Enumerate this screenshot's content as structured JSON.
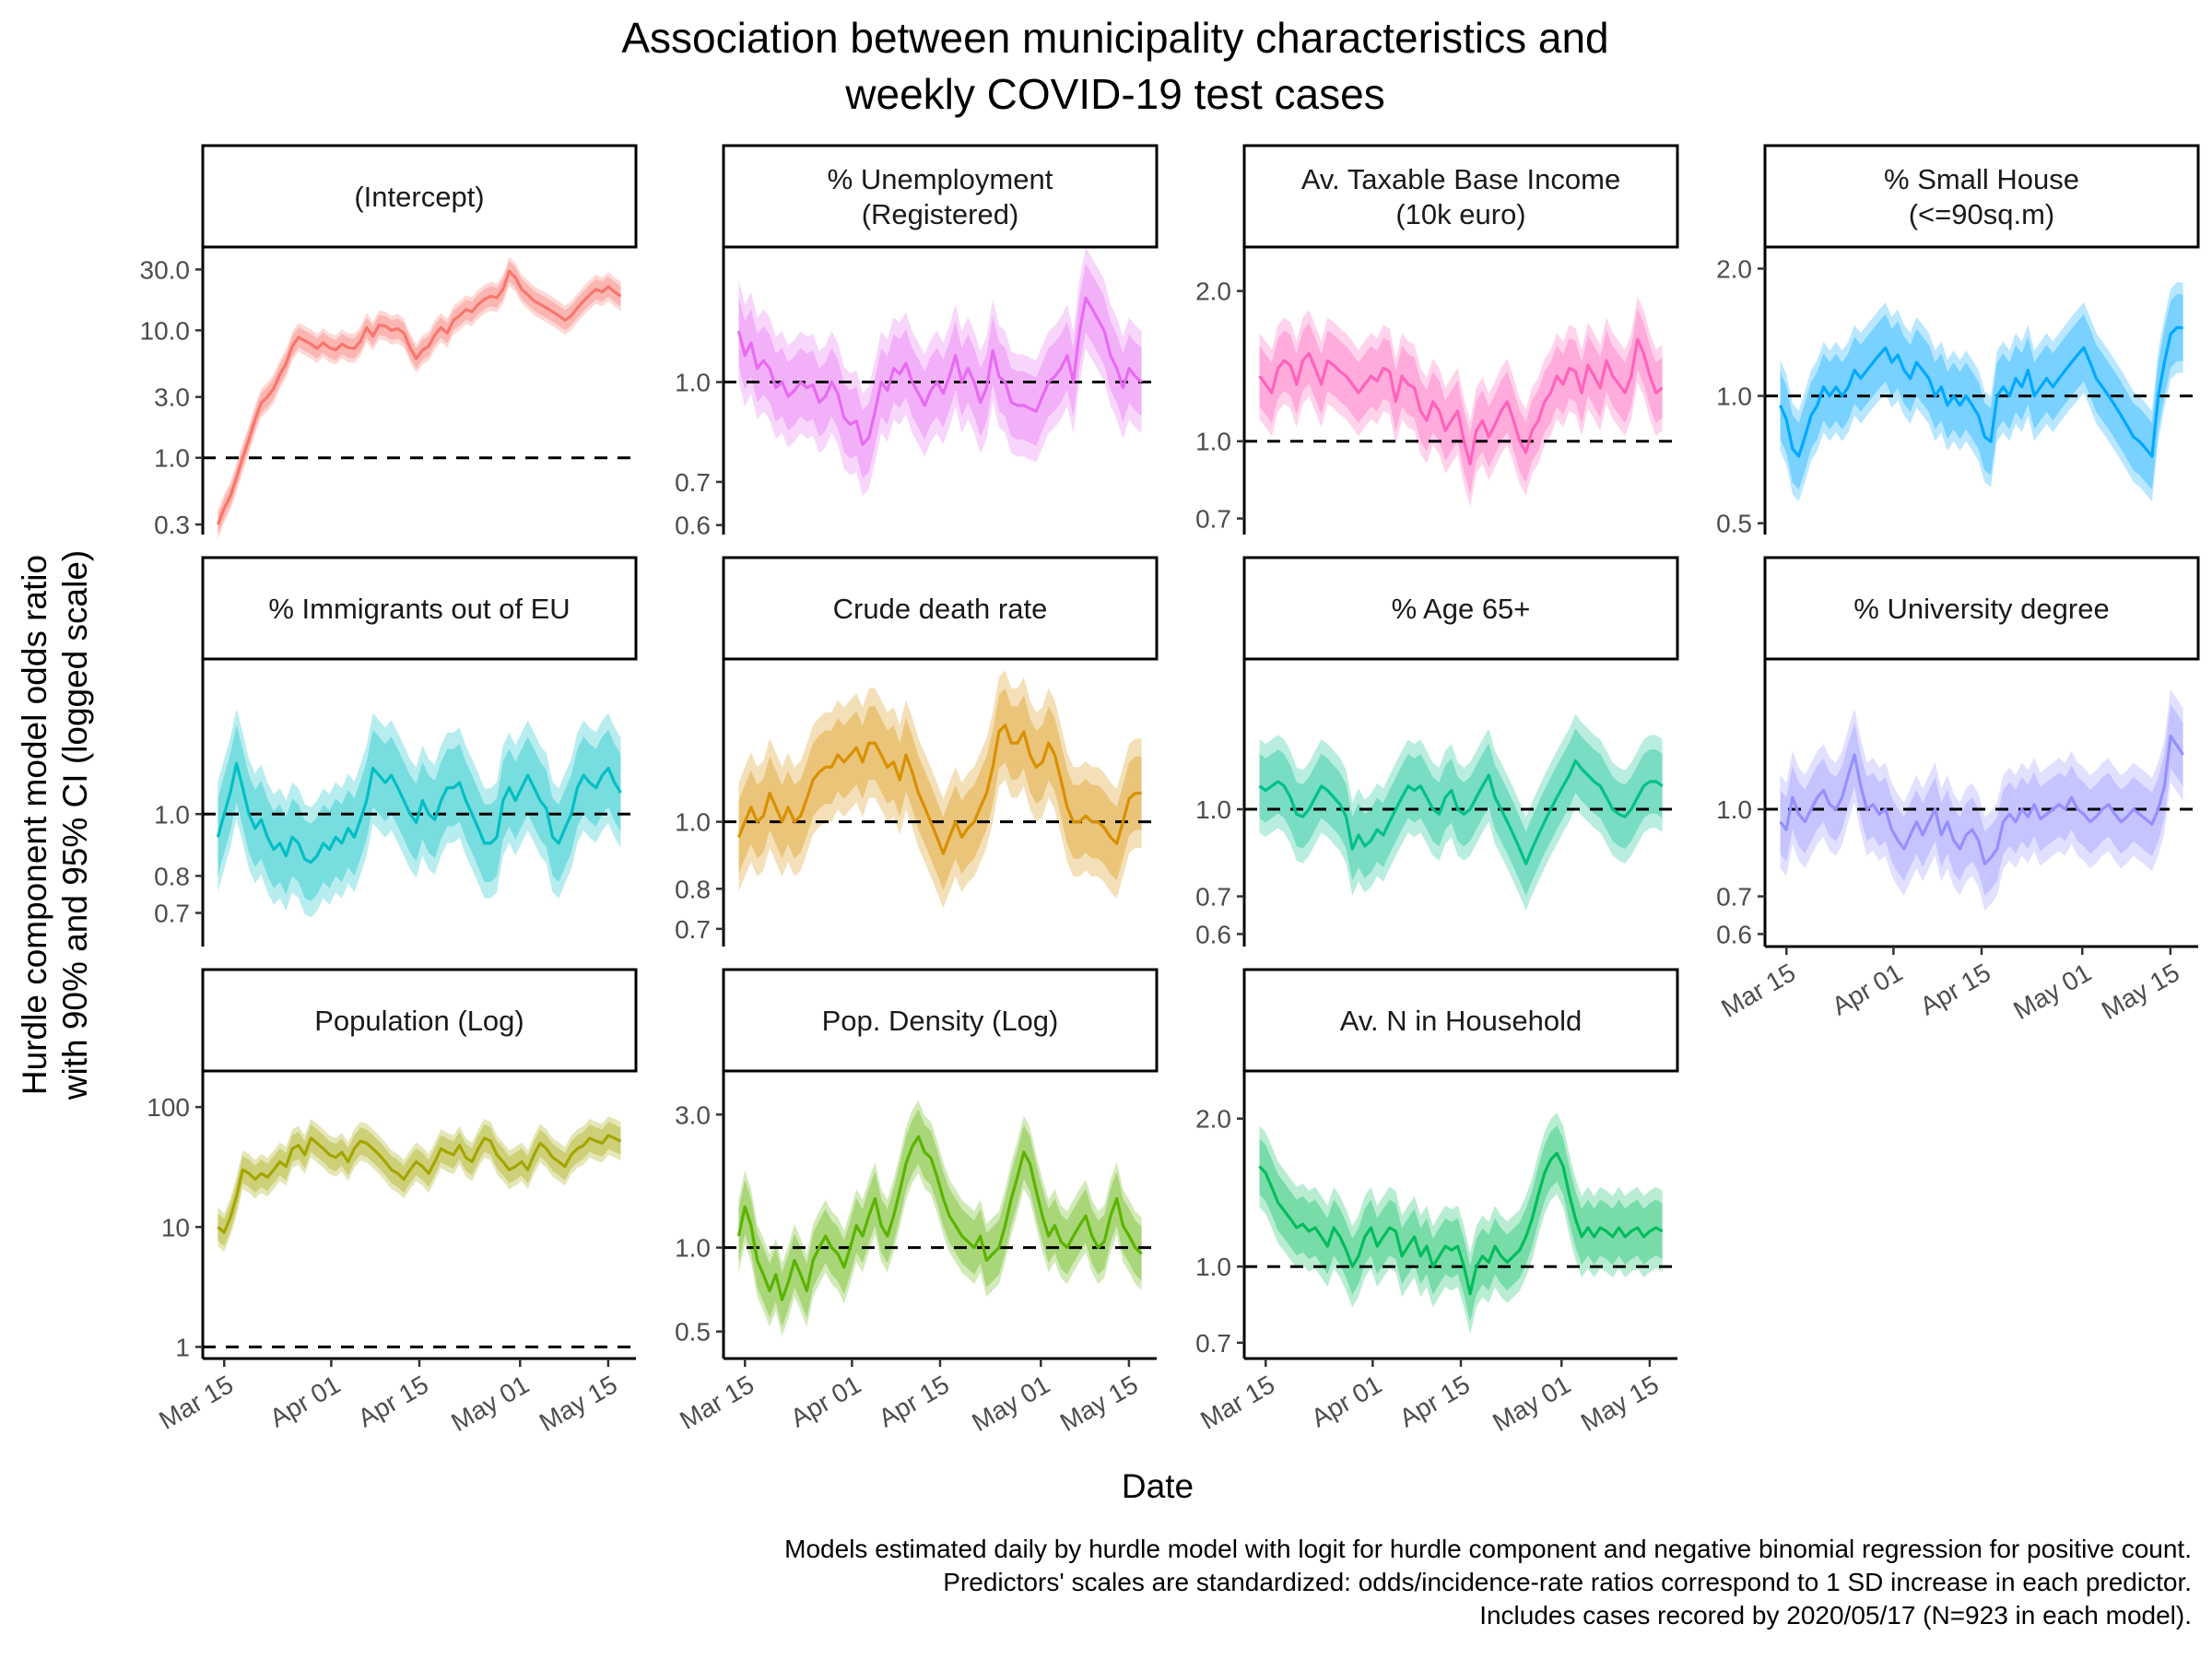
{
  "chart_data": {
    "type": "line",
    "title": [
      "Association between municipality characteristics and",
      "weekly COVID-19 test cases"
    ],
    "xlabel": "Date",
    "ylabel": [
      "Hurdle component model odds ratio",
      "with 90% and 95% CI (logged scale)"
    ],
    "caption": [
      "Models estimated daily by hurdle model with logit for hurdle component and negative binomial regression for positive count.",
      "Predictors' scales are standardized: odds/incidence-rate ratios correspond to 1 SD increase in each predictor.",
      "Includes cases recored by 2020/05/17 (N=923 in each model)."
    ],
    "y_scale": "log",
    "reference_line": 1.0,
    "x_range": [
      "2020-03-14",
      "2020-05-17"
    ],
    "x_tick_labels": [
      "Mar 15",
      "Apr 01",
      "Apr 15",
      "May 01",
      "May 15"
    ],
    "x_tick_dates": [
      "2020-03-15",
      "2020-04-01",
      "2020-04-15",
      "2020-05-01",
      "2020-05-15"
    ],
    "panels": [
      {
        "strip": [
          "(Intercept)"
        ],
        "color": "#F8766D",
        "ylim": [
          0.25,
          45
        ],
        "yticks": [
          0.3,
          1.0,
          3.0,
          10.0,
          30.0
        ],
        "ytick_labels": [
          "0.3",
          "1.0",
          "3.0",
          "10.0",
          "30.0"
        ],
        "ci90": 1.2,
        "ci95": 1.3,
        "values": [
          0.3,
          0.4,
          0.5,
          0.7,
          1.0,
          1.4,
          2.0,
          2.7,
          3.0,
          3.5,
          4.5,
          5.5,
          7.5,
          8.8,
          8.3,
          7.8,
          7.2,
          8.0,
          7.3,
          7.0,
          7.8,
          7.3,
          7.2,
          8.2,
          10.5,
          9.0,
          11.0,
          10.8,
          10.0,
          10.3,
          9.5,
          7.3,
          6.0,
          7.0,
          7.5,
          9.2,
          10.5,
          9.5,
          12.0,
          13.0,
          14.5,
          14.0,
          16.0,
          17.5,
          18.5,
          18.0,
          21.0,
          29.0,
          26.0,
          21.0,
          19.0,
          17.0,
          16.0,
          15.0,
          14.0,
          13.0,
          12.0,
          13.0,
          15.0,
          17.0,
          19.0,
          21.0,
          20.0,
          22.0,
          20.0,
          18.5
        ]
      },
      {
        "strip": [
          "% Unemployment",
          "(Registered)"
        ],
        "color": "#E76BF3",
        "ylim": [
          0.58,
          1.62
        ],
        "yticks": [
          0.6,
          0.7,
          1.0
        ],
        "ytick_labels": [
          "0.6",
          "0.7",
          "1.0"
        ],
        "ci90": 1.13,
        "ci95": 1.2,
        "values": [
          1.2,
          1.1,
          1.15,
          1.05,
          1.08,
          1.05,
          0.98,
          1.0,
          0.95,
          0.97,
          1.0,
          0.98,
          0.99,
          0.93,
          0.95,
          1.0,
          0.96,
          0.88,
          0.86,
          0.87,
          0.8,
          0.82,
          0.9,
          1.0,
          0.97,
          1.05,
          1.03,
          1.07,
          1.0,
          0.96,
          0.92,
          0.97,
          1.0,
          0.96,
          1.02,
          1.1,
          1.0,
          1.05,
          1.0,
          0.93,
          0.98,
          1.12,
          1.02,
          1.0,
          0.93,
          0.92,
          0.92,
          0.91,
          0.9,
          0.95,
          1.0,
          1.02,
          1.05,
          1.1,
          1.0,
          1.2,
          1.35,
          1.3,
          1.25,
          1.2,
          1.1,
          1.05,
          0.98,
          1.05,
          1.02,
          1.0
        ]
      },
      {
        "strip": [
          "Av. Taxable Base Income",
          "(10k euro)"
        ],
        "color": "#FF62BC",
        "ylim": [
          0.65,
          2.45
        ],
        "yticks": [
          0.7,
          1.0,
          2.0
        ],
        "ytick_labels": [
          "0.7",
          "1.0",
          "2.0"
        ],
        "ci90": 1.15,
        "ci95": 1.22,
        "values": [
          1.35,
          1.3,
          1.25,
          1.4,
          1.45,
          1.42,
          1.3,
          1.45,
          1.5,
          1.4,
          1.3,
          1.45,
          1.42,
          1.38,
          1.35,
          1.3,
          1.25,
          1.3,
          1.35,
          1.32,
          1.4,
          1.38,
          1.2,
          1.35,
          1.3,
          1.28,
          1.15,
          1.1,
          1.2,
          1.15,
          1.05,
          1.1,
          1.15,
          1.0,
          0.9,
          1.05,
          1.1,
          1.02,
          1.08,
          1.15,
          1.2,
          1.1,
          1.0,
          0.95,
          1.05,
          1.1,
          1.2,
          1.25,
          1.35,
          1.3,
          1.4,
          1.38,
          1.25,
          1.42,
          1.35,
          1.28,
          1.45,
          1.35,
          1.3,
          1.25,
          1.35,
          1.6,
          1.5,
          1.35,
          1.25,
          1.28
        ]
      },
      {
        "strip": [
          "% Small House",
          "(<=90sq.m)"
        ],
        "color": "#00A9FF",
        "ylim": [
          0.47,
          2.25
        ],
        "yticks": [
          0.5,
          1.0,
          2.0
        ],
        "ytick_labels": [
          "0.5",
          "1.0",
          "2.0"
        ],
        "ci90": 1.2,
        "ci95": 1.28,
        "values": [
          0.95,
          0.88,
          0.75,
          0.72,
          0.8,
          0.9,
          0.95,
          1.05,
          1.0,
          1.05,
          1.0,
          1.05,
          1.15,
          1.1,
          1.15,
          1.2,
          1.25,
          1.3,
          1.2,
          1.25,
          1.15,
          1.1,
          1.2,
          1.15,
          1.1,
          1.0,
          1.05,
          0.95,
          1.0,
          0.95,
          1.0,
          0.95,
          0.9,
          0.8,
          0.78,
          1.0,
          1.05,
          1.0,
          1.1,
          1.05,
          1.15,
          1.0,
          1.05,
          1.1,
          1.05,
          1.1,
          1.15,
          1.2,
          1.25,
          1.3,
          1.2,
          1.1,
          1.05,
          1.0,
          0.95,
          0.9,
          0.85,
          0.8,
          0.78,
          0.75,
          0.72,
          1.0,
          1.2,
          1.4,
          1.45,
          1.45
        ]
      },
      {
        "strip": [
          "% Immigrants out of EU"
        ],
        "color": "#00BFC4",
        "ylim": [
          0.62,
          1.75
        ],
        "yticks": [
          0.7,
          0.8,
          1.0
        ],
        "ytick_labels": [
          "0.7",
          "0.8",
          "1.0"
        ],
        "ci90": 1.15,
        "ci95": 1.22,
        "values": [
          0.92,
          1.0,
          1.08,
          1.2,
          1.1,
          1.0,
          0.95,
          0.98,
          0.92,
          0.88,
          0.9,
          0.86,
          0.92,
          0.9,
          0.85,
          0.84,
          0.86,
          0.9,
          0.88,
          0.92,
          0.9,
          0.95,
          0.92,
          0.98,
          1.05,
          1.18,
          1.15,
          1.12,
          1.15,
          1.1,
          1.05,
          1.0,
          0.97,
          1.05,
          1.0,
          0.98,
          1.05,
          1.1,
          1.1,
          1.12,
          1.05,
          1.0,
          0.95,
          0.9,
          0.9,
          0.92,
          1.05,
          1.1,
          1.05,
          1.1,
          1.15,
          1.1,
          1.05,
          1.02,
          0.92,
          0.9,
          0.95,
          1.0,
          1.1,
          1.15,
          1.12,
          1.1,
          1.15,
          1.18,
          1.12,
          1.08
        ]
      },
      {
        "strip": [
          "Crude death rate"
        ],
        "color": "#D89000",
        "ylim": [
          0.66,
          1.72
        ],
        "yticks": [
          0.7,
          0.8,
          1.0
        ],
        "ytick_labels": [
          "0.7",
          "0.8",
          "1.0"
        ],
        "ci90": 1.13,
        "ci95": 1.2,
        "values": [
          0.95,
          1.0,
          1.05,
          1.0,
          1.02,
          1.1,
          1.05,
          1.0,
          1.05,
          1.0,
          1.02,
          1.08,
          1.15,
          1.18,
          1.2,
          1.2,
          1.25,
          1.22,
          1.25,
          1.28,
          1.22,
          1.3,
          1.3,
          1.25,
          1.2,
          1.22,
          1.15,
          1.25,
          1.18,
          1.1,
          1.05,
          1.0,
          0.95,
          0.9,
          0.95,
          1.0,
          0.95,
          0.98,
          1.0,
          1.05,
          1.1,
          1.2,
          1.35,
          1.38,
          1.3,
          1.3,
          1.35,
          1.25,
          1.2,
          1.22,
          1.3,
          1.25,
          1.15,
          1.05,
          1.0,
          1.0,
          1.02,
          1.0,
          1.0,
          0.98,
          0.95,
          0.93,
          1.0,
          1.08,
          1.1,
          1.1
        ]
      },
      {
        "strip": [
          "% Age 65+"
        ],
        "color": "#00C08B",
        "ylim": [
          0.57,
          1.85
        ],
        "yticks": [
          0.6,
          0.7,
          1.0
        ],
        "ytick_labels": [
          "0.6",
          "0.7",
          "1.0"
        ],
        "ci90": 1.14,
        "ci95": 1.21,
        "values": [
          1.1,
          1.08,
          1.1,
          1.12,
          1.1,
          1.05,
          0.98,
          0.97,
          1.0,
          1.05,
          1.1,
          1.08,
          1.05,
          1.02,
          0.97,
          0.85,
          0.9,
          0.86,
          0.88,
          0.92,
          0.9,
          0.95,
          1.0,
          1.05,
          1.1,
          1.08,
          1.1,
          1.05,
          1.0,
          0.98,
          1.05,
          1.08,
          1.0,
          0.98,
          1.0,
          1.05,
          1.1,
          1.15,
          1.05,
          1.0,
          0.95,
          0.9,
          0.85,
          0.8,
          0.85,
          0.9,
          0.95,
          1.0,
          1.05,
          1.1,
          1.15,
          1.22,
          1.18,
          1.15,
          1.12,
          1.1,
          1.05,
          1.0,
          0.98,
          0.97,
          1.0,
          1.05,
          1.1,
          1.12,
          1.12,
          1.1
        ]
      },
      {
        "strip": [
          "% University degree"
        ],
        "color": "#9590FF",
        "ylim": [
          0.57,
          1.85
        ],
        "yticks": [
          0.6,
          0.7,
          1.0
        ],
        "ytick_labels": [
          "0.6",
          "0.7",
          "1.0"
        ],
        "ci90": 1.14,
        "ci95": 1.21,
        "values": [
          0.95,
          0.92,
          1.05,
          0.98,
          0.95,
          1.0,
          1.05,
          1.08,
          1.02,
          1.0,
          1.05,
          1.15,
          1.25,
          1.1,
          1.0,
          1.02,
          0.98,
          1.0,
          0.92,
          0.88,
          0.85,
          0.9,
          0.95,
          0.9,
          0.95,
          1.0,
          0.9,
          0.95,
          0.88,
          0.85,
          0.9,
          0.92,
          0.88,
          0.8,
          0.82,
          0.85,
          0.95,
          0.98,
          0.95,
          1.0,
          0.97,
          1.02,
          0.96,
          0.98,
          1.0,
          1.02,
          1.0,
          1.05,
          1.0,
          0.98,
          0.95,
          0.97,
          1.0,
          1.02,
          0.98,
          0.95,
          0.97,
          1.0,
          0.98,
          0.96,
          0.94,
          1.0,
          1.1,
          1.35,
          1.3,
          1.25
        ]
      },
      {
        "strip": [
          "Population (Log)"
        ],
        "color": "#A3A500",
        "ylim": [
          0.8,
          200
        ],
        "yticks": [
          1,
          10,
          100
        ],
        "ytick_labels": [
          "1",
          "10",
          "100"
        ],
        "ci90": 1.3,
        "ci95": 1.45,
        "values": [
          10,
          9,
          12,
          18,
          30,
          28,
          25,
          28,
          26,
          30,
          35,
          32,
          45,
          48,
          40,
          55,
          50,
          45,
          40,
          38,
          42,
          35,
          45,
          52,
          50,
          45,
          40,
          35,
          30,
          28,
          25,
          30,
          35,
          32,
          28,
          35,
          45,
          42,
          40,
          48,
          38,
          35,
          45,
          55,
          52,
          40,
          35,
          30,
          32,
          35,
          30,
          40,
          50,
          45,
          38,
          35,
          32,
          40,
          45,
          48,
          55,
          52,
          50,
          58,
          55,
          52
        ]
      },
      {
        "strip": [
          "Pop. Density (Log)"
        ],
        "color": "#5BB300",
        "ylim": [
          0.4,
          4.3
        ],
        "yticks": [
          0.5,
          1.0,
          3.0
        ],
        "ytick_labels": [
          "0.5",
          "1.0",
          "3.0"
        ],
        "ci90": 1.25,
        "ci95": 1.35,
        "values": [
          1.1,
          1.4,
          1.2,
          0.9,
          0.8,
          0.7,
          0.8,
          0.65,
          0.75,
          0.9,
          0.8,
          0.7,
          0.9,
          1.0,
          1.1,
          1.0,
          0.95,
          0.85,
          1.0,
          1.2,
          1.1,
          1.3,
          1.5,
          1.2,
          1.1,
          1.3,
          1.6,
          2.0,
          2.3,
          2.5,
          2.2,
          2.1,
          1.8,
          1.5,
          1.3,
          1.2,
          1.1,
          1.05,
          1.0,
          1.1,
          0.9,
          0.95,
          1.0,
          1.2,
          1.5,
          1.8,
          2.2,
          2.0,
          1.6,
          1.3,
          1.1,
          1.2,
          1.05,
          1.0,
          1.1,
          1.2,
          1.3,
          1.1,
          1.0,
          1.05,
          1.3,
          1.5,
          1.2,
          1.1,
          1.0,
          0.95
        ]
      },
      {
        "strip": [
          "Av. N in Household"
        ],
        "color": "#00BD5C",
        "ylim": [
          0.65,
          2.5
        ],
        "yticks": [
          0.7,
          1.0,
          2.0
        ],
        "ytick_labels": [
          "0.7",
          "1.0",
          "2.0"
        ],
        "ci90": 1.14,
        "ci95": 1.21,
        "values": [
          1.6,
          1.55,
          1.45,
          1.35,
          1.3,
          1.25,
          1.2,
          1.22,
          1.18,
          1.2,
          1.15,
          1.1,
          1.2,
          1.15,
          1.08,
          1.0,
          1.05,
          1.15,
          1.2,
          1.1,
          1.15,
          1.2,
          1.18,
          1.05,
          1.1,
          1.15,
          1.05,
          1.1,
          1.0,
          1.05,
          1.1,
          1.08,
          1.1,
          1.0,
          0.88,
          1.0,
          1.05,
          1.02,
          1.1,
          1.05,
          1.02,
          1.05,
          1.08,
          1.15,
          1.25,
          1.4,
          1.55,
          1.65,
          1.7,
          1.6,
          1.4,
          1.25,
          1.15,
          1.2,
          1.15,
          1.2,
          1.18,
          1.15,
          1.2,
          1.15,
          1.18,
          1.2,
          1.15,
          1.18,
          1.2,
          1.18
        ]
      }
    ]
  }
}
